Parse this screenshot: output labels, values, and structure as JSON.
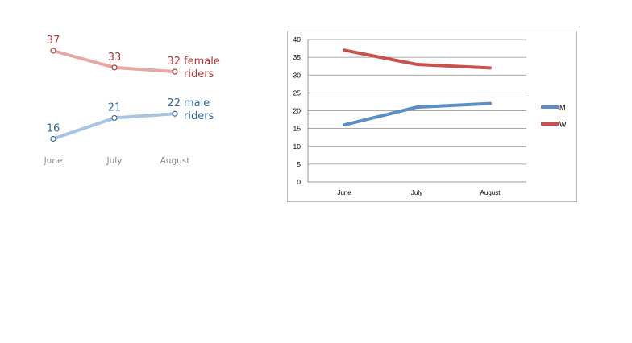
{
  "chart_data": [
    {
      "type": "line",
      "categories": [
        "June",
        "July",
        "August"
      ],
      "series": [
        {
          "name": "female riders",
          "name_line1": "female",
          "name_line2": "riders",
          "values": [
            37,
            33,
            32
          ],
          "color": "#e8a7a4",
          "text_color": "#a93a33"
        },
        {
          "name": "male riders",
          "name_line1": "male",
          "name_line2": "riders",
          "values": [
            16,
            21,
            22
          ],
          "color": "#a9c4df",
          "text_color": "#356a9a"
        }
      ],
      "grid": false,
      "axes": false,
      "data_labels": true
    },
    {
      "type": "line",
      "categories": [
        "June",
        "July",
        "August"
      ],
      "series": [
        {
          "name": "M",
          "values": [
            16,
            21,
            22
          ],
          "color": "#5b8ec3"
        },
        {
          "name": "W",
          "values": [
            37,
            33,
            32
          ],
          "color": "#c9514d"
        }
      ],
      "ylim": [
        0,
        40
      ],
      "yticks": [
        0,
        5,
        10,
        15,
        20,
        25,
        30,
        35,
        40
      ],
      "grid": true,
      "legend": "right"
    }
  ]
}
